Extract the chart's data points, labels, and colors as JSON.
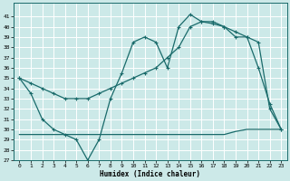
{
  "xlabel": "Humidex (Indice chaleur)",
  "bg_color": "#cce9e8",
  "line_color": "#1a6b6b",
  "grid_color": "#ffffff",
  "ylim": [
    27,
    42
  ],
  "xlim": [
    -0.5,
    23.5
  ],
  "yticks": [
    27,
    28,
    29,
    30,
    31,
    32,
    33,
    34,
    35,
    36,
    37,
    38,
    39,
    40,
    41
  ],
  "xticks": [
    0,
    1,
    2,
    3,
    4,
    5,
    6,
    7,
    8,
    9,
    10,
    11,
    12,
    13,
    14,
    15,
    16,
    17,
    18,
    19,
    20,
    21,
    22,
    23
  ],
  "series": [
    {
      "x": [
        0,
        1,
        2,
        3,
        4,
        5,
        6,
        7,
        8,
        9,
        10,
        11,
        12,
        13,
        14,
        15,
        16,
        17,
        18,
        19,
        20,
        21,
        22,
        23
      ],
      "y": [
        35,
        33.5,
        31,
        30,
        29.5,
        29,
        27,
        29,
        33,
        35.5,
        38.5,
        39,
        38.5,
        36,
        40,
        41.2,
        40.5,
        40.3,
        40,
        39,
        39,
        36,
        32.5,
        30
      ],
      "marker": true
    },
    {
      "x": [
        0,
        1,
        2,
        3,
        4,
        5,
        6,
        7,
        8,
        9,
        10,
        11,
        12,
        13,
        14,
        15,
        16,
        17,
        18,
        19,
        20,
        21,
        22,
        23
      ],
      "y": [
        35,
        34.5,
        34,
        33.5,
        33,
        33,
        33,
        33.5,
        34,
        34.5,
        35,
        35.5,
        36,
        37,
        38,
        40,
        40.5,
        40.5,
        40,
        39.5,
        39,
        38.5,
        32,
        30
      ],
      "marker": true
    },
    {
      "x": [
        0,
        1,
        2,
        3,
        4,
        5,
        6,
        7,
        8,
        9,
        10,
        11,
        12,
        13,
        14,
        15,
        16,
        17,
        18,
        19,
        20,
        21,
        22,
        23
      ],
      "y": [
        29.5,
        29.5,
        29.5,
        29.5,
        29.5,
        29.5,
        29.5,
        29.5,
        29.5,
        29.5,
        29.5,
        29.5,
        29.5,
        29.5,
        29.5,
        29.5,
        29.5,
        29.5,
        29.5,
        29.8,
        30,
        30,
        30,
        30
      ],
      "marker": false
    }
  ]
}
